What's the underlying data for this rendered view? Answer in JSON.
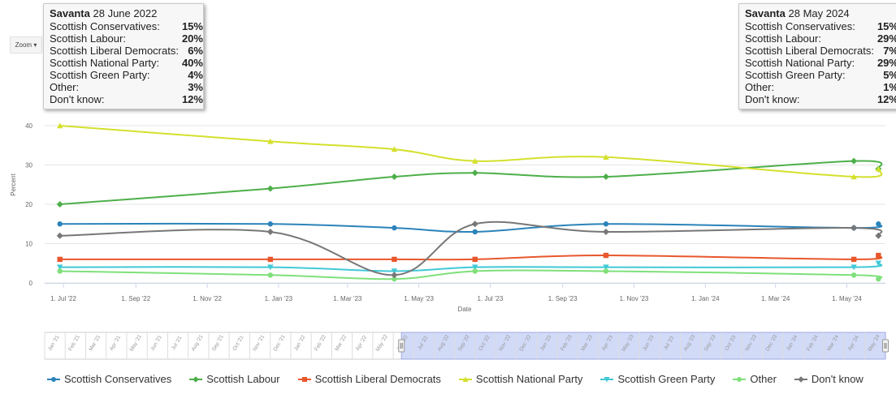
{
  "zoom": {
    "label": "Zoom",
    "arrow": "▾"
  },
  "tooltips": [
    {
      "pollster": "Savanta",
      "date": "28 June 2022",
      "rows": [
        {
          "name": "Scottish Conservatives:",
          "value": "15%"
        },
        {
          "name": "Scottish Labour:",
          "value": "20%"
        },
        {
          "name": "Scottish Liberal Democrats:",
          "value": "6%"
        },
        {
          "name": "Scottish National Party:",
          "value": "40%"
        },
        {
          "name": "Scottish Green Party:",
          "value": "4%"
        },
        {
          "name": "Other:",
          "value": "3%"
        },
        {
          "name": "Don't know:",
          "value": "12%"
        }
      ]
    },
    {
      "pollster": "Savanta",
      "date": "28 May 2024",
      "rows": [
        {
          "name": "Scottish Conservatives:",
          "value": "15%"
        },
        {
          "name": "Scottish Labour:",
          "value": "29%"
        },
        {
          "name": "Scottish Liberal Democrats:",
          "value": "7%"
        },
        {
          "name": "Scottish National Party:",
          "value": "29%"
        },
        {
          "name": "Scottish Green Party:",
          "value": "5%"
        },
        {
          "name": "Other:",
          "value": "1%"
        },
        {
          "name": "Don't know:",
          "value": "12%"
        }
      ]
    }
  ],
  "chart_data": {
    "type": "line",
    "xlabel": "Date",
    "ylabel": "Percent",
    "ylim": [
      0,
      40
    ],
    "yticks": [
      0,
      10,
      20,
      30,
      40
    ],
    "xlim": [
      "2022-06-15",
      "2024-06-03"
    ],
    "xticks": [
      {
        "date": "2022-07-01",
        "label": "1. Jul '22"
      },
      {
        "date": "2022-09-01",
        "label": "1. Sep '22"
      },
      {
        "date": "2022-11-01",
        "label": "1. Nov '22"
      },
      {
        "date": "2023-01-01",
        "label": "1. Jan '23"
      },
      {
        "date": "2023-03-01",
        "label": "1. Mar '23"
      },
      {
        "date": "2023-05-01",
        "label": "1. May '23"
      },
      {
        "date": "2023-07-01",
        "label": "1. Jul '23"
      },
      {
        "date": "2023-09-01",
        "label": "1. Sep '23"
      },
      {
        "date": "2023-11-01",
        "label": "1. Nov '23"
      },
      {
        "date": "2024-01-01",
        "label": "1. Jan '24"
      },
      {
        "date": "2024-03-01",
        "label": "1. Mar '24"
      },
      {
        "date": "2024-05-01",
        "label": "1. May '24"
      }
    ],
    "grid": true,
    "legend_position": "bottom",
    "x": [
      "2022-06-28",
      "2022-12-25",
      "2023-04-10",
      "2023-06-18",
      "2023-10-08",
      "2024-05-07",
      "2024-05-28"
    ],
    "series": [
      {
        "name": "Scottish Conservatives",
        "color": "#2b83ba",
        "marker": "circle",
        "values": [
          15,
          15,
          14,
          13,
          15,
          14,
          15
        ]
      },
      {
        "name": "Scottish Labour",
        "color": "#4daf4a",
        "marker": "diamond",
        "values": [
          20,
          24,
          27,
          28,
          27,
          31,
          29
        ]
      },
      {
        "name": "Scottish Liberal Democrats",
        "color": "#e8572c",
        "marker": "square",
        "values": [
          6,
          6,
          6,
          6,
          7,
          6,
          7
        ]
      },
      {
        "name": "Scottish National Party",
        "color": "#d4e02c",
        "marker": "triangle",
        "values": [
          40,
          36,
          34,
          31,
          32,
          27,
          29
        ]
      },
      {
        "name": "Scottish Green Party",
        "color": "#41c9d6",
        "marker": "triangle-down",
        "values": [
          4,
          4,
          3,
          4,
          4,
          4,
          5
        ]
      },
      {
        "name": "Other",
        "color": "#7fe07a",
        "marker": "circle",
        "values": [
          3,
          2,
          1,
          3,
          3,
          2,
          1
        ]
      },
      {
        "name": "Don't know",
        "color": "#777777",
        "marker": "diamond",
        "values": [
          12,
          13,
          2,
          15,
          13,
          14,
          12
        ]
      }
    ],
    "navigator": {
      "range_start": "2021-01-01",
      "range_end": "2024-06-03",
      "selected_start": "2022-06-15",
      "selected_end": "2024-06-03",
      "labels": [
        "Jan '21",
        "Feb '21",
        "Mar '21",
        "Apr '21",
        "May '21",
        "Jun '21",
        "Jul '21",
        "Aug '21",
        "Sep '21",
        "Oct '21",
        "Nov '21",
        "Dec '21",
        "Jan '22",
        "Feb '22",
        "Mar '22",
        "Apr '22",
        "May '22",
        "Jun '22",
        "Jul '22",
        "Aug '22",
        "Sep '22",
        "Oct '22",
        "Nov '22",
        "Dec '22",
        "Jan '23",
        "Feb '23",
        "Mar '23",
        "Apr '23",
        "May '23",
        "Jun '23",
        "Jul '23",
        "Aug '23",
        "Sep '23",
        "Oct '23",
        "Nov '23",
        "Dec '23",
        "Jan '24",
        "Feb '24",
        "Mar '24",
        "Apr '24",
        "May '24"
      ]
    }
  }
}
